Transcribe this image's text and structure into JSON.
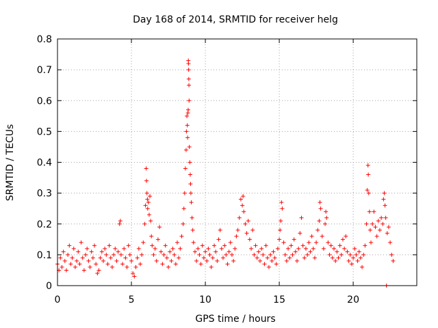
{
  "chart_data": {
    "type": "scatter",
    "title": "Day 168 of 2014, SRMTID for receiver helg",
    "xlabel": "GPS time / hours",
    "ylabel": "SRMTID / TECUs",
    "xlim": [
      0,
      24.3
    ],
    "ylim": [
      0,
      0.8
    ],
    "xticks": [
      0,
      5,
      10,
      15,
      20
    ],
    "yticks": [
      0,
      0.1,
      0.2,
      0.3,
      0.4,
      0.5,
      0.6,
      0.7,
      0.8
    ],
    "xtick_labels": [
      "0",
      "5",
      "10",
      "15",
      "20"
    ],
    "ytick_labels": [
      "0",
      "0.1",
      "0.2",
      "0.3",
      "0.4",
      "0.5",
      "0.6",
      "0.7",
      "0.8"
    ],
    "grid": true,
    "marker": "+",
    "color": "#ff0000",
    "series": [
      {
        "name": "SRMTID",
        "points": [
          [
            0.0,
            0.07
          ],
          [
            0.1,
            0.05
          ],
          [
            0.2,
            0.09
          ],
          [
            0.3,
            0.06
          ],
          [
            0.4,
            0.11
          ],
          [
            0.5,
            0.08
          ],
          [
            0.6,
            0.05
          ],
          [
            0.7,
            0.1
          ],
          [
            0.8,
            0.13
          ],
          [
            0.9,
            0.07
          ],
          [
            1.0,
            0.09
          ],
          [
            1.1,
            0.12
          ],
          [
            1.2,
            0.06
          ],
          [
            1.3,
            0.08
          ],
          [
            1.4,
            0.11
          ],
          [
            1.5,
            0.07
          ],
          [
            1.6,
            0.14
          ],
          [
            1.7,
            0.09
          ],
          [
            1.8,
            0.05
          ],
          [
            1.9,
            0.1
          ],
          [
            2.0,
            0.12
          ],
          [
            2.1,
            0.08
          ],
          [
            2.2,
            0.06
          ],
          [
            2.3,
            0.11
          ],
          [
            2.4,
            0.09
          ],
          [
            2.5,
            0.13
          ],
          [
            2.6,
            0.07
          ],
          [
            2.7,
            0.04
          ],
          [
            2.8,
            0.05
          ],
          [
            2.9,
            0.09
          ],
          [
            3.0,
            0.11
          ],
          [
            3.1,
            0.08
          ],
          [
            3.2,
            0.12
          ],
          [
            3.3,
            0.1
          ],
          [
            3.4,
            0.07
          ],
          [
            3.5,
            0.13
          ],
          [
            3.6,
            0.09
          ],
          [
            3.7,
            0.06
          ],
          [
            3.8,
            0.1
          ],
          [
            3.9,
            0.12
          ],
          [
            4.0,
            0.08
          ],
          [
            4.1,
            0.11
          ],
          [
            4.2,
            0.2
          ],
          [
            4.25,
            0.21
          ],
          [
            4.3,
            0.1
          ],
          [
            4.4,
            0.07
          ],
          [
            4.5,
            0.12
          ],
          [
            4.6,
            0.09
          ],
          [
            4.7,
            0.06
          ],
          [
            4.8,
            0.13
          ],
          [
            4.9,
            0.1
          ],
          [
            5.0,
            0.08
          ],
          [
            5.1,
            0.04
          ],
          [
            5.2,
            0.03
          ],
          [
            5.3,
            0.06
          ],
          [
            5.4,
            0.09
          ],
          [
            5.5,
            0.12
          ],
          [
            5.6,
            0.07
          ],
          [
            5.7,
            0.1
          ],
          [
            5.8,
            0.14
          ],
          [
            5.9,
            0.2
          ],
          [
            5.95,
            0.26
          ],
          [
            6.0,
            0.38
          ],
          [
            6.02,
            0.34
          ],
          [
            6.05,
            0.3
          ],
          [
            6.08,
            0.28
          ],
          [
            6.1,
            0.25
          ],
          [
            6.15,
            0.27
          ],
          [
            6.2,
            0.23
          ],
          [
            6.25,
            0.29
          ],
          [
            6.3,
            0.21
          ],
          [
            6.35,
            0.16
          ],
          [
            6.4,
            0.13
          ],
          [
            6.5,
            0.1
          ],
          [
            6.6,
            0.12
          ],
          [
            6.7,
            0.08
          ],
          [
            6.8,
            0.15
          ],
          [
            6.9,
            0.19
          ],
          [
            7.0,
            0.11
          ],
          [
            7.1,
            0.07
          ],
          [
            7.2,
            0.1
          ],
          [
            7.3,
            0.13
          ],
          [
            7.4,
            0.09
          ],
          [
            7.5,
            0.06
          ],
          [
            7.6,
            0.11
          ],
          [
            7.7,
            0.08
          ],
          [
            7.8,
            0.12
          ],
          [
            7.9,
            0.1
          ],
          [
            8.0,
            0.07
          ],
          [
            8.1,
            0.14
          ],
          [
            8.2,
            0.09
          ],
          [
            8.3,
            0.12
          ],
          [
            8.4,
            0.16
          ],
          [
            8.5,
            0.2
          ],
          [
            8.55,
            0.25
          ],
          [
            8.6,
            0.3
          ],
          [
            8.65,
            0.38
          ],
          [
            8.7,
            0.44
          ],
          [
            8.72,
            0.5
          ],
          [
            8.75,
            0.55
          ],
          [
            8.78,
            0.52
          ],
          [
            8.8,
            0.48
          ],
          [
            8.82,
            0.56
          ],
          [
            8.84,
            0.57
          ],
          [
            8.85,
            0.73
          ],
          [
            8.86,
            0.72
          ],
          [
            8.87,
            0.7
          ],
          [
            8.88,
            0.67
          ],
          [
            8.89,
            0.65
          ],
          [
            8.9,
            0.6
          ],
          [
            8.92,
            0.45
          ],
          [
            8.95,
            0.4
          ],
          [
            8.98,
            0.36
          ],
          [
            9.0,
            0.33
          ],
          [
            9.02,
            0.3
          ],
          [
            9.05,
            0.27
          ],
          [
            9.1,
            0.22
          ],
          [
            9.15,
            0.18
          ],
          [
            9.2,
            0.14
          ],
          [
            9.3,
            0.11
          ],
          [
            9.4,
            0.08
          ],
          [
            9.5,
            0.12
          ],
          [
            9.6,
            0.1
          ],
          [
            9.7,
            0.07
          ],
          [
            9.8,
            0.13
          ],
          [
            9.9,
            0.09
          ],
          [
            10.0,
            0.11
          ],
          [
            10.1,
            0.08
          ],
          [
            10.2,
            0.12
          ],
          [
            10.3,
            0.1
          ],
          [
            10.4,
            0.06
          ],
          [
            10.5,
            0.09
          ],
          [
            10.6,
            0.13
          ],
          [
            10.7,
            0.11
          ],
          [
            10.8,
            0.08
          ],
          [
            10.9,
            0.15
          ],
          [
            11.0,
            0.18
          ],
          [
            11.1,
            0.12
          ],
          [
            11.2,
            0.09
          ],
          [
            11.3,
            0.13
          ],
          [
            11.4,
            0.1
          ],
          [
            11.5,
            0.07
          ],
          [
            11.6,
            0.11
          ],
          [
            11.7,
            0.14
          ],
          [
            11.8,
            0.1
          ],
          [
            11.9,
            0.08
          ],
          [
            12.0,
            0.12
          ],
          [
            12.1,
            0.16
          ],
          [
            12.2,
            0.18
          ],
          [
            12.3,
            0.22
          ],
          [
            12.4,
            0.28
          ],
          [
            12.5,
            0.26
          ],
          [
            12.55,
            0.29
          ],
          [
            12.6,
            0.24
          ],
          [
            12.7,
            0.2
          ],
          [
            12.8,
            0.17
          ],
          [
            12.9,
            0.21
          ],
          [
            13.0,
            0.15
          ],
          [
            13.1,
            0.12
          ],
          [
            13.2,
            0.18
          ],
          [
            13.3,
            0.1
          ],
          [
            13.4,
            0.13
          ],
          [
            13.5,
            0.09
          ],
          [
            13.6,
            0.11
          ],
          [
            13.7,
            0.08
          ],
          [
            13.8,
            0.12
          ],
          [
            13.9,
            0.1
          ],
          [
            14.0,
            0.07
          ],
          [
            14.1,
            0.13
          ],
          [
            14.2,
            0.09
          ],
          [
            14.3,
            0.06
          ],
          [
            14.4,
            0.1
          ],
          [
            14.5,
            0.08
          ],
          [
            14.6,
            0.11
          ],
          [
            14.7,
            0.09
          ],
          [
            14.8,
            0.07
          ],
          [
            14.9,
            0.12
          ],
          [
            15.0,
            0.15
          ],
          [
            15.05,
            0.18
          ],
          [
            15.1,
            0.21
          ],
          [
            15.15,
            0.27
          ],
          [
            15.2,
            0.25
          ],
          [
            15.3,
            0.14
          ],
          [
            15.4,
            0.1
          ],
          [
            15.5,
            0.08
          ],
          [
            15.6,
            0.12
          ],
          [
            15.7,
            0.09
          ],
          [
            15.8,
            0.13
          ],
          [
            15.9,
            0.1
          ],
          [
            16.0,
            0.15
          ],
          [
            16.1,
            0.11
          ],
          [
            16.2,
            0.08
          ],
          [
            16.3,
            0.12
          ],
          [
            16.4,
            0.17
          ],
          [
            16.5,
            0.22
          ],
          [
            16.6,
            0.13
          ],
          [
            16.7,
            0.09
          ],
          [
            16.8,
            0.12
          ],
          [
            16.9,
            0.1
          ],
          [
            17.0,
            0.14
          ],
          [
            17.1,
            0.11
          ],
          [
            17.2,
            0.16
          ],
          [
            17.3,
            0.12
          ],
          [
            17.4,
            0.09
          ],
          [
            17.5,
            0.14
          ],
          [
            17.6,
            0.18
          ],
          [
            17.7,
            0.21
          ],
          [
            17.75,
            0.27
          ],
          [
            17.8,
            0.25
          ],
          [
            17.9,
            0.16
          ],
          [
            18.0,
            0.12
          ],
          [
            18.1,
            0.2
          ],
          [
            18.15,
            0.24
          ],
          [
            18.2,
            0.22
          ],
          [
            18.3,
            0.14
          ],
          [
            18.4,
            0.1
          ],
          [
            18.5,
            0.13
          ],
          [
            18.6,
            0.09
          ],
          [
            18.7,
            0.12
          ],
          [
            18.8,
            0.08
          ],
          [
            18.9,
            0.11
          ],
          [
            19.0,
            0.09
          ],
          [
            19.1,
            0.13
          ],
          [
            19.2,
            0.1
          ],
          [
            19.3,
            0.15
          ],
          [
            19.4,
            0.12
          ],
          [
            19.5,
            0.16
          ],
          [
            19.6,
            0.11
          ],
          [
            19.7,
            0.08
          ],
          [
            19.8,
            0.1
          ],
          [
            19.9,
            0.07
          ],
          [
            20.0,
            0.09
          ],
          [
            20.1,
            0.12
          ],
          [
            20.2,
            0.1
          ],
          [
            20.3,
            0.08
          ],
          [
            20.4,
            0.11
          ],
          [
            20.5,
            0.09
          ],
          [
            20.6,
            0.06
          ],
          [
            20.7,
            0.1
          ],
          [
            20.8,
            0.13
          ],
          [
            20.9,
            0.2
          ],
          [
            20.95,
            0.31
          ],
          [
            21.0,
            0.39
          ],
          [
            21.02,
            0.36
          ],
          [
            21.05,
            0.3
          ],
          [
            21.1,
            0.24
          ],
          [
            21.15,
            0.18
          ],
          [
            21.2,
            0.14
          ],
          [
            21.3,
            0.2
          ],
          [
            21.4,
            0.24
          ],
          [
            21.5,
            0.19
          ],
          [
            21.6,
            0.16
          ],
          [
            21.7,
            0.21
          ],
          [
            21.8,
            0.18
          ],
          [
            21.9,
            0.22
          ],
          [
            22.0,
            0.2
          ],
          [
            22.05,
            0.28
          ],
          [
            22.1,
            0.3
          ],
          [
            22.15,
            0.26
          ],
          [
            22.2,
            0.22
          ],
          [
            22.25,
            0.0
          ],
          [
            22.3,
            0.17
          ],
          [
            22.4,
            0.19
          ],
          [
            22.5,
            0.14
          ],
          [
            22.6,
            0.1
          ],
          [
            22.7,
            0.08
          ]
        ]
      }
    ]
  }
}
